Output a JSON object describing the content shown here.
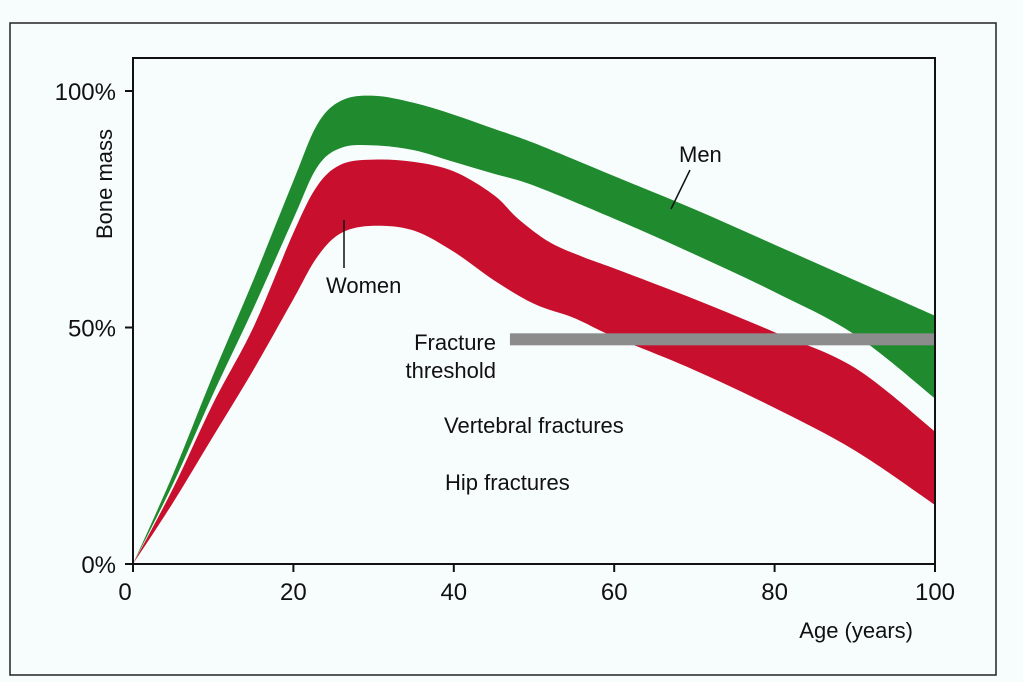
{
  "chart_data": {
    "type": "area",
    "title": "",
    "xlabel": "Age (years)",
    "ylabel": "Bone mass",
    "xlim": [
      0,
      100
    ],
    "ylim": [
      0,
      100
    ],
    "x_ticks": [
      "0",
      "20",
      "40",
      "60",
      "80",
      "100"
    ],
    "y_ticks": [
      "0%",
      "50%",
      "100%"
    ],
    "grid": false,
    "series": [
      {
        "name": "Men",
        "color": "#1f8a2e",
        "upper": [
          [
            0,
            0
          ],
          [
            5,
            19
          ],
          [
            10,
            40
          ],
          [
            15,
            60
          ],
          [
            20,
            81
          ],
          [
            23,
            93
          ],
          [
            26,
            98
          ],
          [
            30,
            99
          ],
          [
            35,
            97.5
          ],
          [
            40,
            95
          ],
          [
            45,
            92
          ],
          [
            50,
            89
          ],
          [
            60,
            82
          ],
          [
            70,
            75
          ],
          [
            80,
            67.5
          ],
          [
            90,
            60
          ],
          [
            100,
            52.5
          ]
        ],
        "lower": [
          [
            0,
            0
          ],
          [
            5,
            17
          ],
          [
            10,
            36
          ],
          [
            15,
            54
          ],
          [
            20,
            73
          ],
          [
            23,
            84
          ],
          [
            26,
            88
          ],
          [
            30,
            88.5
          ],
          [
            35,
            87.5
          ],
          [
            40,
            85
          ],
          [
            45,
            82.5
          ],
          [
            50,
            80
          ],
          [
            60,
            73
          ],
          [
            70,
            65.5
          ],
          [
            80,
            57.5
          ],
          [
            90,
            48.5
          ],
          [
            100,
            35
          ]
        ]
      },
      {
        "name": "Women",
        "color": "#c8102e",
        "upper": [
          [
            0,
            0
          ],
          [
            5,
            16
          ],
          [
            10,
            34
          ],
          [
            15,
            50
          ],
          [
            20,
            70
          ],
          [
            23,
            80
          ],
          [
            26,
            84.5
          ],
          [
            30,
            85.5
          ],
          [
            35,
            85
          ],
          [
            40,
            83
          ],
          [
            45,
            78
          ],
          [
            48,
            73
          ],
          [
            52,
            68
          ],
          [
            56,
            65
          ],
          [
            60,
            62.5
          ],
          [
            70,
            56
          ],
          [
            80,
            49
          ],
          [
            90,
            41.5
          ],
          [
            100,
            28
          ]
        ],
        "lower": [
          [
            0,
            0
          ],
          [
            5,
            13
          ],
          [
            10,
            27
          ],
          [
            15,
            41
          ],
          [
            20,
            56
          ],
          [
            23,
            65
          ],
          [
            26,
            70
          ],
          [
            30,
            71.5
          ],
          [
            35,
            70.5
          ],
          [
            40,
            66
          ],
          [
            45,
            60
          ],
          [
            50,
            55
          ],
          [
            55,
            52
          ],
          [
            60,
            48
          ],
          [
            70,
            41
          ],
          [
            80,
            33
          ],
          [
            90,
            24
          ],
          [
            100,
            12.5
          ]
        ]
      }
    ],
    "fracture_threshold": {
      "label_line1": "Fracture",
      "label_line2": "threshold",
      "y": 47.5,
      "x_start": 47,
      "x_end": 100,
      "color": "#8c8c8c"
    },
    "annotations": {
      "men": "Men",
      "women": "Women",
      "vertebral": "Vertebral fractures",
      "hip": "Hip fractures"
    }
  }
}
